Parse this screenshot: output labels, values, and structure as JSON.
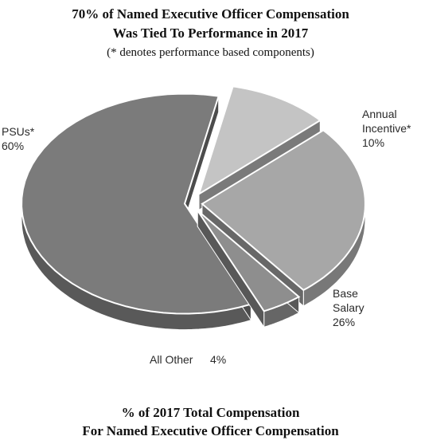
{
  "title_line1": "70% of Named Executive Officer Compensation",
  "title_line2": "Was Tied To Performance in 2017",
  "subtitle": "(* denotes performance based components)",
  "footer_line1": "% of 2017 Total Compensation",
  "footer_line2": "For Named Executive Officer Compensation",
  "chart_data": {
    "type": "pie",
    "style": "3d-exploded",
    "slices": [
      {
        "label": "PSUs*",
        "value": 60,
        "value_label": "60%",
        "color": "#7b7b7b"
      },
      {
        "label": "Annual Incentive*",
        "label_lines": [
          "Annual",
          "Incentive*"
        ],
        "value": 10,
        "value_label": "10%",
        "color": "#c4c4c4"
      },
      {
        "label": "Base Salary",
        "label_lines": [
          "Base",
          "Salary"
        ],
        "value": 26,
        "value_label": "26%",
        "color": "#a7a7a7"
      },
      {
        "label": "All Other",
        "value": 4,
        "value_label": "4%",
        "color": "#8e8e8e"
      }
    ]
  }
}
